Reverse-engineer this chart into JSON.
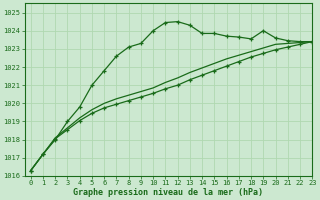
{
  "title": "Graphe pression niveau de la mer (hPa)",
  "bg_color": "#cce8d0",
  "grid_color": "#b0d8b0",
  "line_color": "#1a6b1a",
  "xlim": [
    -0.5,
    23
  ],
  "ylim": [
    1016,
    1025.5
  ],
  "yticks": [
    1016,
    1017,
    1018,
    1019,
    1020,
    1021,
    1022,
    1023,
    1024,
    1025
  ],
  "xticks": [
    0,
    1,
    2,
    3,
    4,
    5,
    6,
    7,
    8,
    9,
    10,
    11,
    12,
    13,
    14,
    15,
    16,
    17,
    18,
    19,
    20,
    21,
    22,
    23
  ],
  "series1_x": [
    0,
    1,
    2,
    3,
    4,
    5,
    6,
    7,
    8,
    9,
    10,
    11,
    12,
    13,
    14,
    15,
    16,
    17,
    18,
    19,
    20,
    21,
    22,
    23
  ],
  "series1_y": [
    1016.3,
    1017.2,
    1018.0,
    1019.0,
    1019.8,
    1021.0,
    1021.8,
    1022.6,
    1023.1,
    1023.3,
    1024.0,
    1024.45,
    1024.5,
    1024.3,
    1023.85,
    1023.85,
    1023.7,
    1023.65,
    1023.55,
    1024.0,
    1023.6,
    1023.45,
    1023.4,
    1023.4
  ],
  "series2_x": [
    0,
    1,
    2,
    3,
    4,
    5,
    6,
    7,
    8,
    9,
    10,
    11,
    12,
    13,
    14,
    15,
    16,
    17,
    18,
    19,
    20,
    21,
    22,
    23
  ],
  "series2_y": [
    1016.3,
    1017.2,
    1018.05,
    1018.55,
    1019.05,
    1019.45,
    1019.75,
    1019.95,
    1020.15,
    1020.35,
    1020.55,
    1020.8,
    1021.0,
    1021.3,
    1021.55,
    1021.8,
    1022.05,
    1022.3,
    1022.55,
    1022.75,
    1022.95,
    1023.1,
    1023.25,
    1023.4
  ],
  "series3_x": [
    0,
    1,
    2,
    3,
    4,
    5,
    6,
    7,
    8,
    9,
    10,
    11,
    12,
    13,
    14,
    15,
    16,
    17,
    18,
    19,
    20,
    21,
    22,
    23
  ],
  "series3_y": [
    1016.3,
    1017.2,
    1018.1,
    1018.65,
    1019.2,
    1019.65,
    1020.0,
    1020.25,
    1020.45,
    1020.65,
    1020.85,
    1021.15,
    1021.4,
    1021.7,
    1021.95,
    1022.2,
    1022.45,
    1022.65,
    1022.85,
    1023.05,
    1023.25,
    1023.3,
    1023.35,
    1023.4
  ]
}
